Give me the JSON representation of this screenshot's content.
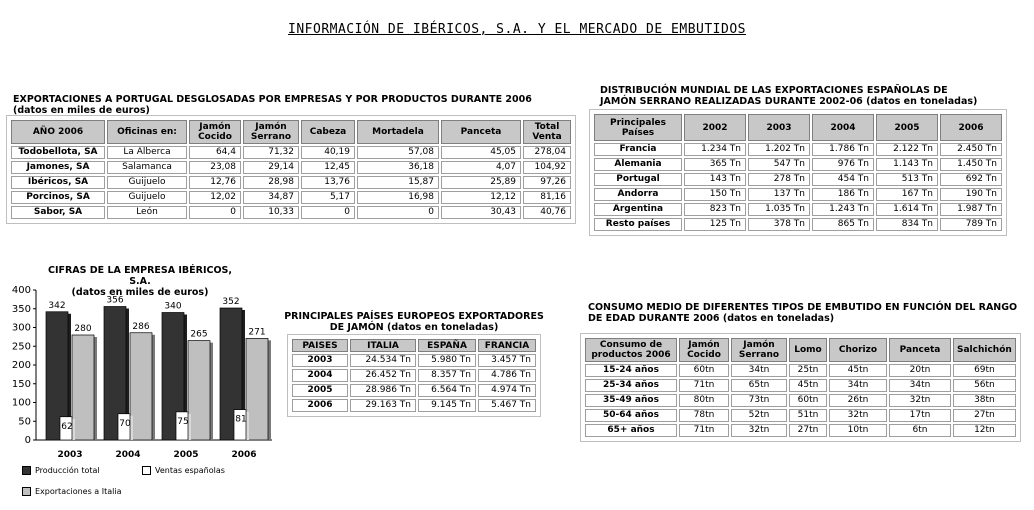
{
  "title": "INFORMACIÓN DE IBÉRICOS, S.A. Y EL MERCADO DE EMBUTIDOS",
  "table_exports": {
    "title": "EXPORTACIONES A PORTUGAL DESGLOSADAS POR EMPRESAS Y POR PRODUCTOS DURANTE 2006",
    "subtitle": "(datos en miles de euros)",
    "headers": [
      "AÑO 2006",
      "Oficinas en:",
      "Jamón Cocido",
      "Jamón Serrano",
      "Cabeza",
      "Mortadela",
      "Panceta",
      "Total Venta"
    ],
    "rows": [
      [
        "Todobellota, SA",
        "La Alberca",
        "64,4",
        "71,32",
        "40,19",
        "57,08",
        "45,05",
        "278,04"
      ],
      [
        "Jamones, SA",
        "Salamanca",
        "23,08",
        "29,14",
        "12,45",
        "36,18",
        "4,07",
        "104,92"
      ],
      [
        "Ibéricos, SA",
        "Guijuelo",
        "12,76",
        "28,98",
        "13,76",
        "15,87",
        "25,89",
        "97,26"
      ],
      [
        "Porcinos, SA",
        "Guijuelo",
        "12,02",
        "34,87",
        "5,17",
        "16,98",
        "12,12",
        "81,16"
      ],
      [
        "Sabor, SA",
        "León",
        "0",
        "10,33",
        "0",
        "0",
        "30,43",
        "40,76"
      ]
    ]
  },
  "table_distribution": {
    "title": "DISTRIBUCIÓN MUNDIAL DE LAS EXPORTACIONES ESPAÑOLAS DE",
    "subtitle": "JAMÓN SERRANO REALIZADAS DURANTE 2002-06 (datos en toneladas)",
    "headers": [
      "Principales Países",
      "2002",
      "2003",
      "2004",
      "2005",
      "2006"
    ],
    "rows": [
      [
        "Francia",
        "1.234 Tn",
        "1.202 Tn",
        "1.786 Tn",
        "2.122 Tn",
        "2.450 Tn"
      ],
      [
        "Alemania",
        "365 Tn",
        "547 Tn",
        "976 Tn",
        "1.143 Tn",
        "1.450 Tn"
      ],
      [
        "Portugal",
        "143 Tn",
        "278 Tn",
        "454 Tn",
        "513 Tn",
        "692 Tn"
      ],
      [
        "Andorra",
        "150 Tn",
        "137 Tn",
        "186 Tn",
        "167 Tn",
        "190 Tn"
      ],
      [
        "Argentina",
        "823 Tn",
        "1.035 Tn",
        "1.243 Tn",
        "1.614 Tn",
        "1.987 Tn"
      ],
      [
        "Resto países",
        "125 Tn",
        "378 Tn",
        "865 Tn",
        "834 Tn",
        "789 Tn"
      ]
    ]
  },
  "table_european": {
    "title": "PRINCIPALES PAÍSES EUROPEOS EXPORTADORES",
    "subtitle": "DE JAMÓN (datos en toneladas)",
    "headers": [
      "PAISES",
      "ITALIA",
      "ESPAÑA",
      "FRANCIA"
    ],
    "rows": [
      [
        "2003",
        "24.534 Tn",
        "5.980 Tn",
        "3.457 Tn"
      ],
      [
        "2004",
        "26.452 Tn",
        "8.357 Tn",
        "4.786 Tn"
      ],
      [
        "2005",
        "28.986 Tn",
        "6.564 Tn",
        "4.974 Tn"
      ],
      [
        "2006",
        "29.163 Tn",
        "9.145 Tn",
        "5.467 Tn"
      ]
    ]
  },
  "table_consumption": {
    "title": "CONSUMO MEDIO DE DIFERENTES TIPOS DE EMBUTIDO EN FUNCIÓN DEL RANGO",
    "subtitle": "DE EDAD DURANTE 2006 (datos en toneladas)",
    "headers": [
      "Consumo de productos 2006",
      "Jamón Cocido",
      "Jamón Serrano",
      "Lomo",
      "Chorizo",
      "Panceta",
      "Salchichón"
    ],
    "rows": [
      [
        "15-24 años",
        "60tn",
        "34tn",
        "25tn",
        "45tn",
        "20tn",
        "69tn"
      ],
      [
        "25-34 años",
        "71tn",
        "65tn",
        "45tn",
        "34tn",
        "34tn",
        "56tn"
      ],
      [
        "35-49 años",
        "80tn",
        "73tn",
        "60tn",
        "26tn",
        "32tn",
        "38tn"
      ],
      [
        "50-64 años",
        "78tn",
        "52tn",
        "51tn",
        "32tn",
        "17tn",
        "27tn"
      ],
      [
        "65+ años",
        "71tn",
        "32tn",
        "27tn",
        "10tn",
        "6tn",
        "12tn"
      ]
    ]
  },
  "chart_data": {
    "type": "bar",
    "title": "CIFRAS DE LA EMPRESA IBÉRICOS, S.A.",
    "subtitle": "(datos en miles de euros)",
    "categories": [
      "2003",
      "2004",
      "2005",
      "2006"
    ],
    "series": [
      {
        "name": "Producción total",
        "values": [
          342,
          356,
          340,
          352
        ],
        "color": "#333333"
      },
      {
        "name": "Ventas españolas",
        "values": [
          62,
          70,
          75,
          81
        ],
        "color": "#ffffff"
      },
      {
        "name": "Exportaciones a Italia",
        "values": [
          280,
          286,
          265,
          271
        ],
        "color": "#bfbfbf"
      }
    ],
    "yticks": [
      "0",
      "50",
      "100",
      "150",
      "200",
      "250",
      "300",
      "350",
      "400"
    ],
    "ylim": [
      0,
      400
    ],
    "grid": false,
    "legend_position": "bottom"
  }
}
